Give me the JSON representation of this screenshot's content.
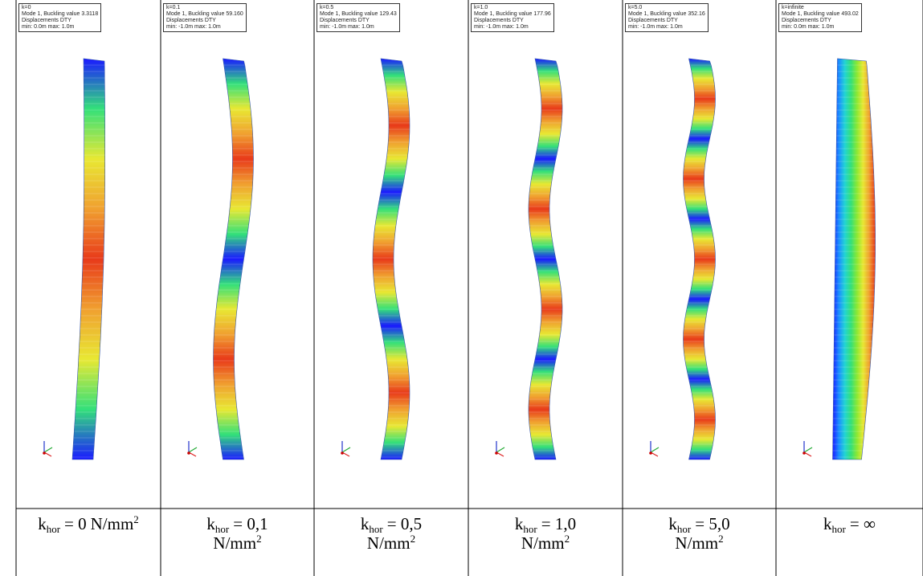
{
  "panels": [
    {
      "info": [
        "k=0",
        "Mode 1, Buckling value 3.3118",
        "Displacements DTY",
        "min: 0.0m max: 1.0m"
      ],
      "caption": {
        "symbol": "k",
        "subscript": "hor",
        "value": "= 0",
        "unit": "N/mm",
        "superscript": "2"
      }
    },
    {
      "info": [
        "k=0.1",
        "Mode 1, Buckling value 59.160",
        "Displacements DTY",
        "min: -1.0m max: 1.0m"
      ],
      "caption": {
        "symbol": "k",
        "subscript": "hor",
        "value": "= 0,1",
        "unit": "N/mm",
        "superscript": "2"
      }
    },
    {
      "info": [
        "k=0.5",
        "Mode 1, Buckling value 129.43",
        "Displacements DTY",
        "min: -1.0m max: 1.0m"
      ],
      "caption": {
        "symbol": "k",
        "subscript": "hor",
        "value": "= 0,5",
        "unit": "N/mm",
        "superscript": "2"
      }
    },
    {
      "info": [
        "k=1.0",
        "Mode 1, Buckling value 177.96",
        "Displacements DTY",
        "min: -1.0m max: 1.0m"
      ],
      "caption": {
        "symbol": "k",
        "subscript": "hor",
        "value": "= 1,0",
        "unit": "N/mm",
        "superscript": "2"
      }
    },
    {
      "info": [
        "k=5.0",
        "Mode 1, Buckling value 352.16",
        "Displacements DTY",
        "min: -1.0m max: 1.0m"
      ],
      "caption": {
        "symbol": "k",
        "subscript": "hor",
        "value": "= 5,0",
        "unit": "N/mm",
        "superscript": "2"
      }
    },
    {
      "info": [
        "k=infinite",
        "Mode 1, Buckling value 493.02",
        "Displacements DTY",
        "min: 0.0m max: 1.0m"
      ],
      "caption": {
        "symbol": "k",
        "subscript": "hor",
        "value": "= ∞"
      }
    }
  ]
}
